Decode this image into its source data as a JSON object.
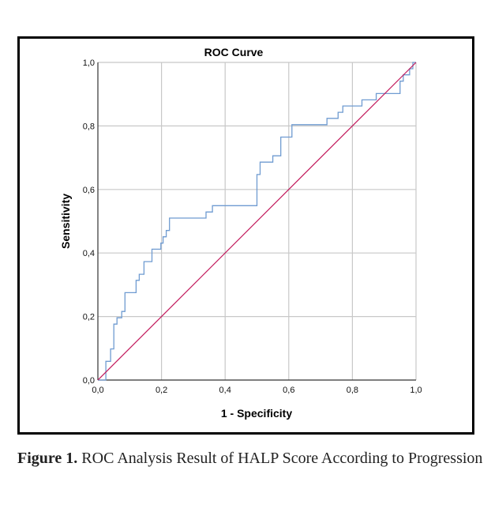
{
  "figure": {
    "caption_label": "Figure 1.",
    "caption_text": " ROC Analysis Result of HALP Score According to Progression"
  },
  "chart_data": {
    "type": "line",
    "title": "ROC Curve",
    "xlabel": "1 - Specificity",
    "ylabel": "Sensitivity",
    "xlim": [
      0.0,
      1.0
    ],
    "ylim": [
      0.0,
      1.0
    ],
    "grid": true,
    "legend": "none",
    "x_ticks": [
      "0,0",
      "0,2",
      "0,4",
      "0,6",
      "0,8",
      "1,0"
    ],
    "y_ticks": [
      "0,0",
      "0,2",
      "0,4",
      "0,6",
      "0,8",
      "1,0"
    ],
    "series": [
      {
        "name": "ROC curve",
        "color": "#6f9bd1",
        "step": true,
        "points": [
          [
            0.0,
            0.0
          ],
          [
            0.025,
            0.0
          ],
          [
            0.025,
            0.059
          ],
          [
            0.04,
            0.059
          ],
          [
            0.04,
            0.098
          ],
          [
            0.05,
            0.098
          ],
          [
            0.05,
            0.176
          ],
          [
            0.06,
            0.176
          ],
          [
            0.06,
            0.196
          ],
          [
            0.075,
            0.196
          ],
          [
            0.075,
            0.216
          ],
          [
            0.085,
            0.216
          ],
          [
            0.085,
            0.275
          ],
          [
            0.12,
            0.275
          ],
          [
            0.12,
            0.314
          ],
          [
            0.13,
            0.314
          ],
          [
            0.13,
            0.333
          ],
          [
            0.145,
            0.333
          ],
          [
            0.145,
            0.373
          ],
          [
            0.17,
            0.373
          ],
          [
            0.17,
            0.412
          ],
          [
            0.198,
            0.412
          ],
          [
            0.198,
            0.431
          ],
          [
            0.205,
            0.431
          ],
          [
            0.205,
            0.451
          ],
          [
            0.215,
            0.451
          ],
          [
            0.215,
            0.471
          ],
          [
            0.225,
            0.471
          ],
          [
            0.225,
            0.51
          ],
          [
            0.34,
            0.51
          ],
          [
            0.34,
            0.529
          ],
          [
            0.36,
            0.529
          ],
          [
            0.36,
            0.549
          ],
          [
            0.5,
            0.549
          ],
          [
            0.5,
            0.647
          ],
          [
            0.51,
            0.647
          ],
          [
            0.51,
            0.686
          ],
          [
            0.55,
            0.686
          ],
          [
            0.55,
            0.706
          ],
          [
            0.575,
            0.706
          ],
          [
            0.575,
            0.765
          ],
          [
            0.61,
            0.765
          ],
          [
            0.61,
            0.804
          ],
          [
            0.72,
            0.804
          ],
          [
            0.72,
            0.824
          ],
          [
            0.755,
            0.824
          ],
          [
            0.755,
            0.843
          ],
          [
            0.77,
            0.843
          ],
          [
            0.77,
            0.863
          ],
          [
            0.83,
            0.863
          ],
          [
            0.83,
            0.882
          ],
          [
            0.875,
            0.882
          ],
          [
            0.875,
            0.902
          ],
          [
            0.95,
            0.902
          ],
          [
            0.95,
            0.941
          ],
          [
            0.96,
            0.941
          ],
          [
            0.96,
            0.961
          ],
          [
            0.98,
            0.961
          ],
          [
            0.98,
            0.98
          ],
          [
            0.99,
            0.98
          ],
          [
            0.99,
            1.0
          ],
          [
            1.0,
            1.0
          ]
        ]
      },
      {
        "name": "Reference line",
        "color": "#c2185b",
        "step": false,
        "points": [
          [
            0.0,
            0.0
          ],
          [
            1.0,
            1.0
          ]
        ]
      }
    ]
  }
}
